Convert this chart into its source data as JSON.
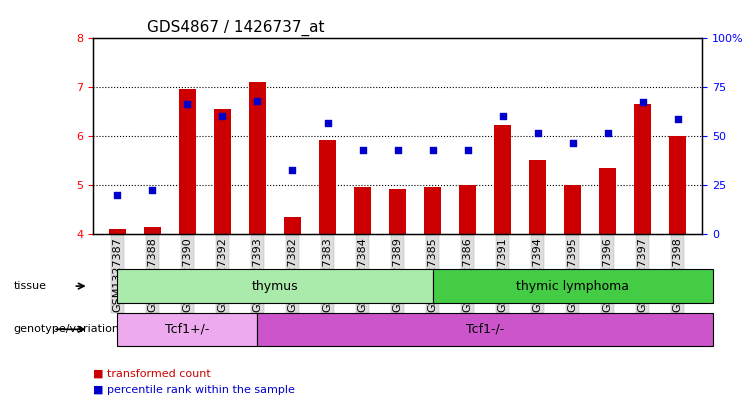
{
  "title": "GDS4867 / 1426737_at",
  "samples": [
    "GSM1327387",
    "GSM1327388",
    "GSM1327390",
    "GSM1327392",
    "GSM1327393",
    "GSM1327382",
    "GSM1327383",
    "GSM1327384",
    "GSM1327389",
    "GSM1327385",
    "GSM1327386",
    "GSM1327391",
    "GSM1327394",
    "GSM1327395",
    "GSM1327396",
    "GSM1327397",
    "GSM1327398"
  ],
  "bar_values": [
    4.1,
    4.15,
    6.95,
    6.55,
    7.1,
    4.35,
    5.92,
    4.95,
    4.92,
    4.95,
    5.0,
    6.22,
    5.5,
    5.0,
    5.35,
    6.65,
    6.0
  ],
  "dot_values": [
    4.8,
    4.9,
    6.65,
    6.4,
    6.7,
    5.3,
    6.25,
    5.72,
    5.72,
    5.7,
    5.7,
    6.4,
    6.05,
    5.85,
    6.05,
    6.68,
    6.35
  ],
  "ylim_left": [
    4,
    8
  ],
  "ylim_right": [
    0,
    100
  ],
  "yticks_left": [
    4,
    5,
    6,
    7,
    8
  ],
  "yticks_right": [
    0,
    25,
    50,
    75,
    100
  ],
  "bar_color": "#cc0000",
  "dot_color": "#0000cc",
  "bar_bottom": 4.0,
  "tissue_groups": [
    {
      "label": "thymus",
      "start": 0,
      "end": 9,
      "color": "#aaeaaa"
    },
    {
      "label": "thymic lymphoma",
      "start": 9,
      "end": 17,
      "color": "#44cc44"
    }
  ],
  "genotype_groups": [
    {
      "label": "Tcf1+/-",
      "start": 0,
      "end": 4,
      "color": "#eeaaee"
    },
    {
      "label": "Tcf1-/-",
      "start": 4,
      "end": 17,
      "color": "#cc55cc"
    }
  ],
  "tissue_label": "tissue",
  "genotype_label": "genotype/variation",
  "bg_color": "#ffffff",
  "plot_bg": "#ffffff",
  "title_fontsize": 11,
  "tick_fontsize": 8
}
